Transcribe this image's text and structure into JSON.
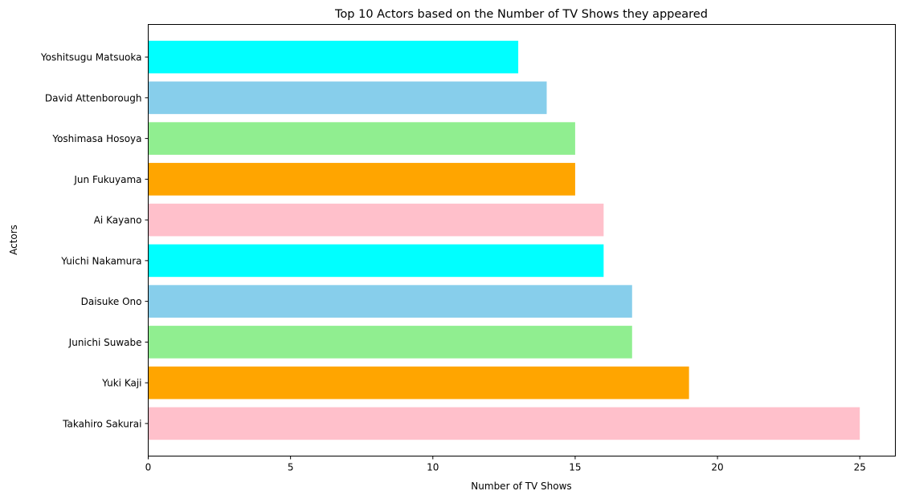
{
  "chart_data": {
    "type": "bar",
    "orientation": "horizontal",
    "title": "Top 10 Actors based on the Number of TV Shows they appeared",
    "xlabel": "Number of TV Shows",
    "ylabel": "Actors",
    "xlim": [
      0,
      26.25
    ],
    "xticks": [
      0,
      5,
      10,
      15,
      20,
      25
    ],
    "grid": false,
    "categories": [
      "Takahiro Sakurai",
      "Yuki Kaji",
      "Junichi Suwabe",
      "Daisuke Ono",
      "Yuichi Nakamura",
      "Ai Kayano",
      "Jun Fukuyama",
      "Yoshimasa Hosoya",
      "David Attenborough",
      "Yoshitsugu Matsuoka"
    ],
    "values": [
      25,
      19,
      17,
      17,
      16,
      16,
      15,
      15,
      14,
      13
    ],
    "colors": [
      "#ffc0cb",
      "#ffa500",
      "#90ee90",
      "#87ceeb",
      "#00ffff",
      "#ffc0cb",
      "#ffa500",
      "#90ee90",
      "#87ceeb",
      "#00ffff"
    ]
  }
}
